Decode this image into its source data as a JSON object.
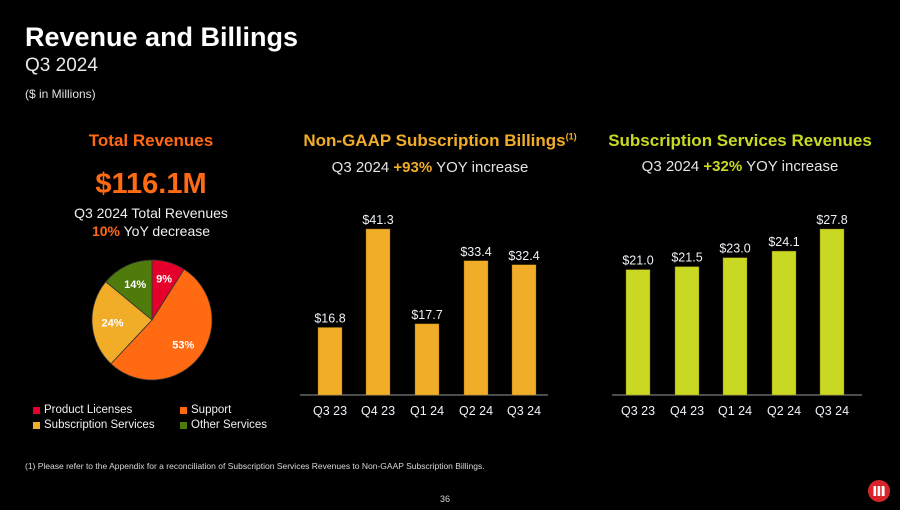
{
  "header": {
    "title": "Revenue and Billings",
    "subtitle": "Q3 2024",
    "units": "($ in Millions)"
  },
  "total_revenues": {
    "title": "Total Revenues",
    "amount": "$116.1M",
    "caption": "Q3 2024 Total Revenues",
    "change_value": "10%",
    "change_text": " YoY decrease"
  },
  "billings": {
    "title": "Non-GAAP Subscription Billings",
    "footnote_marker": "(1)",
    "sub_prefix": "Q3 2024 ",
    "sub_value": "+93%",
    "sub_suffix": " YOY increase"
  },
  "services": {
    "title": "Subscription Services Revenues",
    "sub_prefix": "Q3 2024 ",
    "sub_value": "+32%",
    "sub_suffix": " YOY increase"
  },
  "legend": [
    {
      "label": "Product Licenses",
      "color": "#e4002b"
    },
    {
      "label": "Support",
      "color": "#ff6a13"
    },
    {
      "label": "Subscription Services",
      "color": "#f2ad28"
    },
    {
      "label": "Other Services",
      "color": "#4e7b0c"
    }
  ],
  "footnote": "(1) Please refer to the Appendix for a reconciliation of Subscription Services Revenues to Non-GAAP Subscription Billings.",
  "page_number": "36",
  "logo_icon": "microstrategy-logo-icon",
  "chart_data": [
    {
      "type": "pie",
      "title": "Total Revenues Mix",
      "categories": [
        "Product Licenses",
        "Support",
        "Subscription Services",
        "Other Services"
      ],
      "values": [
        9,
        53,
        24,
        14
      ],
      "labels": [
        "9%",
        "53%",
        "24%",
        "14%"
      ],
      "colors": [
        "#e4002b",
        "#ff6a13",
        "#f2ad28",
        "#4e7b0c"
      ],
      "legend_position": "bottom"
    },
    {
      "type": "bar",
      "title": "Non-GAAP Subscription Billings",
      "categories": [
        "Q3 23",
        "Q4 23",
        "Q1 24",
        "Q2 24",
        "Q3 24"
      ],
      "values": [
        16.8,
        41.3,
        17.7,
        33.4,
        32.4
      ],
      "labels": [
        "$16.8",
        "$41.3",
        "$17.7",
        "$33.4",
        "$32.4"
      ],
      "color": "#f2ad28",
      "xlabel": "",
      "ylabel": "",
      "grid": false
    },
    {
      "type": "bar",
      "title": "Subscription Services Revenues",
      "categories": [
        "Q3 23",
        "Q4 23",
        "Q1 24",
        "Q2 24",
        "Q3 24"
      ],
      "values": [
        21.0,
        21.5,
        23.0,
        24.1,
        27.8
      ],
      "labels": [
        "$21.0",
        "$21.5",
        "$23.0",
        "$24.1",
        "$27.8"
      ],
      "color": "#c9d923",
      "xlabel": "",
      "ylabel": "",
      "grid": false
    }
  ]
}
